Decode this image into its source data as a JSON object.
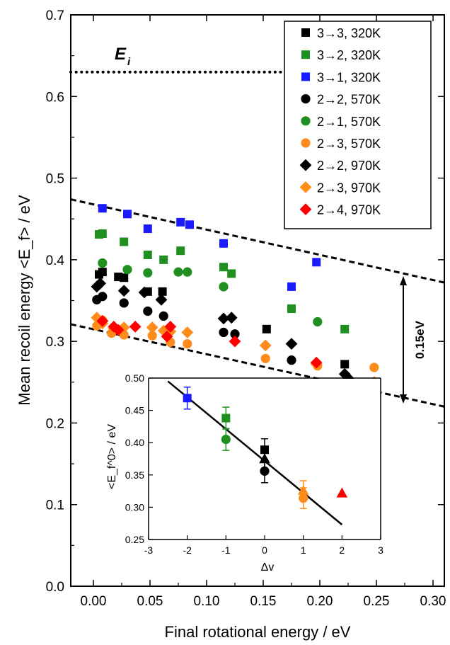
{
  "chart_data": {
    "type": "scatter",
    "xlabel": "Final rotational energy / eV",
    "ylabel": "Mean recoil energy <E_f> / eV",
    "xlim": [
      -0.02,
      0.31
    ],
    "ylim": [
      0.0,
      0.7
    ],
    "xticks": [
      "0.00",
      "0.05",
      "0.10",
      "0.15",
      "0.20",
      "0.25",
      "0.30"
    ],
    "yticks": [
      "0.0",
      "0.1",
      "0.2",
      "0.3",
      "0.4",
      "0.5",
      "0.6",
      "0.7"
    ],
    "legend_position": "top-right",
    "colors": {
      "black": "#000000",
      "green": "#1f8f1f",
      "blue": "#1a1aff",
      "orange": "#ff8c1a",
      "red": "#ff0000"
    },
    "ei_label": "E",
    "ei_sub": "i",
    "ei_value": 0.63,
    "band_label": "0.15eV",
    "series": [
      {
        "name": "3→3, 320K",
        "marker": "square",
        "color": "#000000",
        "points": [
          [
            0.005,
            0.382
          ],
          [
            0.008,
            0.385
          ],
          [
            0.022,
            0.379
          ],
          [
            0.027,
            0.378
          ],
          [
            0.048,
            0.361
          ],
          [
            0.061,
            0.361
          ],
          [
            0.153,
            0.315
          ],
          [
            0.222,
            0.272
          ]
        ]
      },
      {
        "name": "3→2, 320K",
        "marker": "square",
        "color": "#1f8f1f",
        "points": [
          [
            0.005,
            0.431
          ],
          [
            0.008,
            0.432
          ],
          [
            0.027,
            0.422
          ],
          [
            0.048,
            0.406
          ],
          [
            0.062,
            0.4
          ],
          [
            0.077,
            0.411
          ],
          [
            0.115,
            0.391
          ],
          [
            0.122,
            0.383
          ],
          [
            0.175,
            0.34
          ],
          [
            0.222,
            0.315
          ]
        ]
      },
      {
        "name": "3→1, 320K",
        "marker": "square",
        "color": "#1a1aff",
        "points": [
          [
            0.008,
            0.463
          ],
          [
            0.03,
            0.456
          ],
          [
            0.048,
            0.438
          ],
          [
            0.077,
            0.446
          ],
          [
            0.085,
            0.443
          ],
          [
            0.115,
            0.42
          ],
          [
            0.175,
            0.367
          ],
          [
            0.197,
            0.397
          ]
        ]
      },
      {
        "name": "2→2, 570K",
        "marker": "circle",
        "color": "#000000",
        "points": [
          [
            0.003,
            0.351
          ],
          [
            0.008,
            0.355
          ],
          [
            0.027,
            0.347
          ],
          [
            0.048,
            0.337
          ],
          [
            0.062,
            0.331
          ],
          [
            0.115,
            0.311
          ],
          [
            0.125,
            0.309
          ],
          [
            0.175,
            0.277
          ],
          [
            0.222,
            0.245
          ]
        ]
      },
      {
        "name": "2→1, 570K",
        "marker": "circle",
        "color": "#1f8f1f",
        "points": [
          [
            0.008,
            0.396
          ],
          [
            0.03,
            0.388
          ],
          [
            0.048,
            0.384
          ],
          [
            0.075,
            0.385
          ],
          [
            0.083,
            0.385
          ],
          [
            0.115,
            0.367
          ],
          [
            0.198,
            0.324
          ]
        ]
      },
      {
        "name": "2→3, 570K",
        "marker": "circle",
        "color": "#ff8c1a",
        "points": [
          [
            0.003,
            0.319
          ],
          [
            0.008,
            0.326
          ],
          [
            0.016,
            0.31
          ],
          [
            0.027,
            0.308
          ],
          [
            0.052,
            0.307
          ],
          [
            0.068,
            0.299
          ],
          [
            0.083,
            0.297
          ],
          [
            0.152,
            0.279
          ],
          [
            0.198,
            0.27
          ],
          [
            0.248,
            0.268
          ]
        ]
      },
      {
        "name": "2→2, 970K",
        "marker": "diamond",
        "color": "#000000",
        "points": [
          [
            0.003,
            0.367
          ],
          [
            0.006,
            0.371
          ],
          [
            0.027,
            0.362
          ],
          [
            0.045,
            0.36
          ],
          [
            0.06,
            0.351
          ],
          [
            0.115,
            0.328
          ],
          [
            0.122,
            0.329
          ],
          [
            0.175,
            0.297
          ],
          [
            0.222,
            0.26
          ],
          [
            0.225,
            0.255
          ]
        ]
      },
      {
        "name": "2→3, 970K",
        "marker": "diamond",
        "color": "#ff8c1a",
        "points": [
          [
            0.003,
            0.329
          ],
          [
            0.008,
            0.322
          ],
          [
            0.018,
            0.316
          ],
          [
            0.027,
            0.317
          ],
          [
            0.052,
            0.317
          ],
          [
            0.062,
            0.313
          ],
          [
            0.068,
            0.312
          ],
          [
            0.083,
            0.311
          ],
          [
            0.152,
            0.295
          ],
          [
            0.197,
            0.272
          ],
          [
            0.248,
            0.25
          ]
        ]
      },
      {
        "name": "2→4, 970K",
        "marker": "diamond",
        "color": "#ff0000",
        "points": [
          [
            0.008,
            0.325
          ],
          [
            0.018,
            0.318
          ],
          [
            0.022,
            0.314
          ],
          [
            0.037,
            0.318
          ],
          [
            0.065,
            0.306
          ],
          [
            0.068,
            0.318
          ],
          [
            0.125,
            0.3
          ],
          [
            0.197,
            0.274
          ]
        ]
      }
    ],
    "reference_lines": {
      "ei_line": [
        [
          -0.02,
          0.63
        ],
        [
          0.198,
          0.63
        ]
      ],
      "upper_dashed": [
        [
          -0.02,
          0.474
        ],
        [
          0.31,
          0.372
        ]
      ],
      "lower_dashed": [
        [
          -0.02,
          0.321
        ],
        [
          0.31,
          0.22
        ]
      ]
    },
    "inset": {
      "xlabel": "Δv",
      "ylabel": "<E_f^0> / eV",
      "xlim": [
        -3,
        3
      ],
      "ylim": [
        0.25,
        0.5
      ],
      "xticks": [
        "-3",
        "-2",
        "-1",
        "0",
        "1",
        "2",
        "3"
      ],
      "yticks": [
        "0.25",
        "0.30",
        "0.35",
        "0.40",
        "0.45",
        "0.50"
      ],
      "fit_line": [
        [
          -2.5,
          0.495
        ],
        [
          2.0,
          0.273
        ]
      ],
      "points": [
        {
          "x": -2,
          "y": 0.469,
          "err": 0.017,
          "marker": "square",
          "color": "#1a1aff"
        },
        {
          "x": -1,
          "y": 0.438,
          "err": 0.017,
          "marker": "square",
          "color": "#1f8f1f"
        },
        {
          "x": -1,
          "y": 0.405,
          "err": 0.017,
          "marker": "circle",
          "color": "#1f8f1f"
        },
        {
          "x": 0,
          "y": 0.389,
          "err": 0.017,
          "marker": "square",
          "color": "#000000"
        },
        {
          "x": 0,
          "y": 0.375,
          "err": 0.015,
          "marker": "triangle",
          "color": "#000000"
        },
        {
          "x": 0,
          "y": 0.356,
          "err": 0.018,
          "marker": "circle",
          "color": "#000000"
        },
        {
          "x": 1,
          "y": 0.326,
          "err": 0.015,
          "marker": "triangle",
          "color": "#ff8c1a"
        },
        {
          "x": 1,
          "y": 0.314,
          "err": 0.016,
          "marker": "circle",
          "color": "#ff8c1a"
        },
        {
          "x": 2,
          "y": 0.322,
          "err": 0,
          "marker": "triangle",
          "color": "#ff0000"
        }
      ]
    }
  }
}
